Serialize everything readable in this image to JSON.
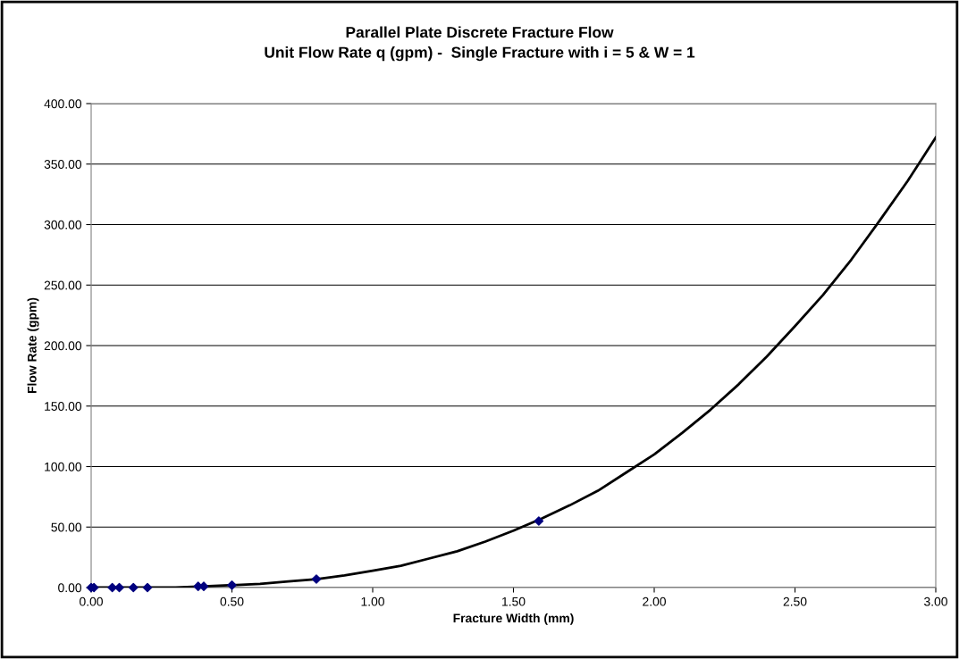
{
  "chart_data": {
    "type": "line",
    "title": "Parallel Plate Discrete Fracture Flow\nUnit Flow Rate q (gpm) -  Single Fracture with i = 5 & W = 1",
    "xlabel": "Fracture Width (mm)",
    "ylabel": "Flow Rate (gpm)",
    "series": [
      {
        "color": "#000000",
        "marker": "none",
        "x": [
          0,
          0.1,
          0.2,
          0.3,
          0.4,
          0.5,
          0.6,
          0.7,
          0.8,
          0.9,
          1.0,
          1.1,
          1.2,
          1.3,
          1.4,
          1.5,
          1.6,
          1.7,
          1.8,
          1.9,
          2.0,
          2.1,
          2.2,
          2.3,
          2.4,
          2.5,
          2.6,
          2.7,
          2.8,
          2.9,
          3.0
        ],
        "values": [
          0,
          0,
          0,
          0,
          1,
          2,
          3,
          5,
          7,
          10,
          14,
          18,
          24,
          30,
          38,
          47,
          57,
          68,
          80,
          95,
          110,
          128,
          147,
          168,
          191,
          216,
          242,
          271,
          303,
          336,
          372
        ]
      },
      {
        "type": "scatter",
        "color": "#00007f",
        "marker": "diamond",
        "x": [
          0,
          0.01,
          0.075,
          0.1,
          0.15,
          0.2,
          0.38,
          0.4,
          0.5,
          0.8,
          1.59
        ],
        "values": [
          0,
          0,
          0,
          0,
          0,
          0,
          1,
          1,
          2,
          7,
          55
        ]
      }
    ],
    "xlim": [
      0,
      3
    ],
    "xticks": [
      {
        "value": 0,
        "label": "0.00"
      },
      {
        "value": 0.5,
        "label": "0.50"
      },
      {
        "value": 1,
        "label": "1.00"
      },
      {
        "value": 1.5,
        "label": "1.50"
      },
      {
        "value": 2,
        "label": "2.00"
      },
      {
        "value": 2.5,
        "label": "2.50"
      },
      {
        "value": 3,
        "label": "3.00"
      }
    ],
    "ylim": [
      0,
      400
    ],
    "yticks": [
      {
        "value": 0,
        "label": "0.00"
      },
      {
        "value": 50,
        "label": "50.00"
      },
      {
        "value": 100,
        "label": "100.00"
      },
      {
        "value": 150,
        "label": "150.00"
      },
      {
        "value": 200,
        "label": "200.00"
      },
      {
        "value": 250,
        "label": "250.00"
      },
      {
        "value": 300,
        "label": "300.00"
      },
      {
        "value": 350,
        "label": "350.00"
      },
      {
        "value": 400,
        "label": "400.00"
      }
    ],
    "grid": "y",
    "legend": false
  }
}
